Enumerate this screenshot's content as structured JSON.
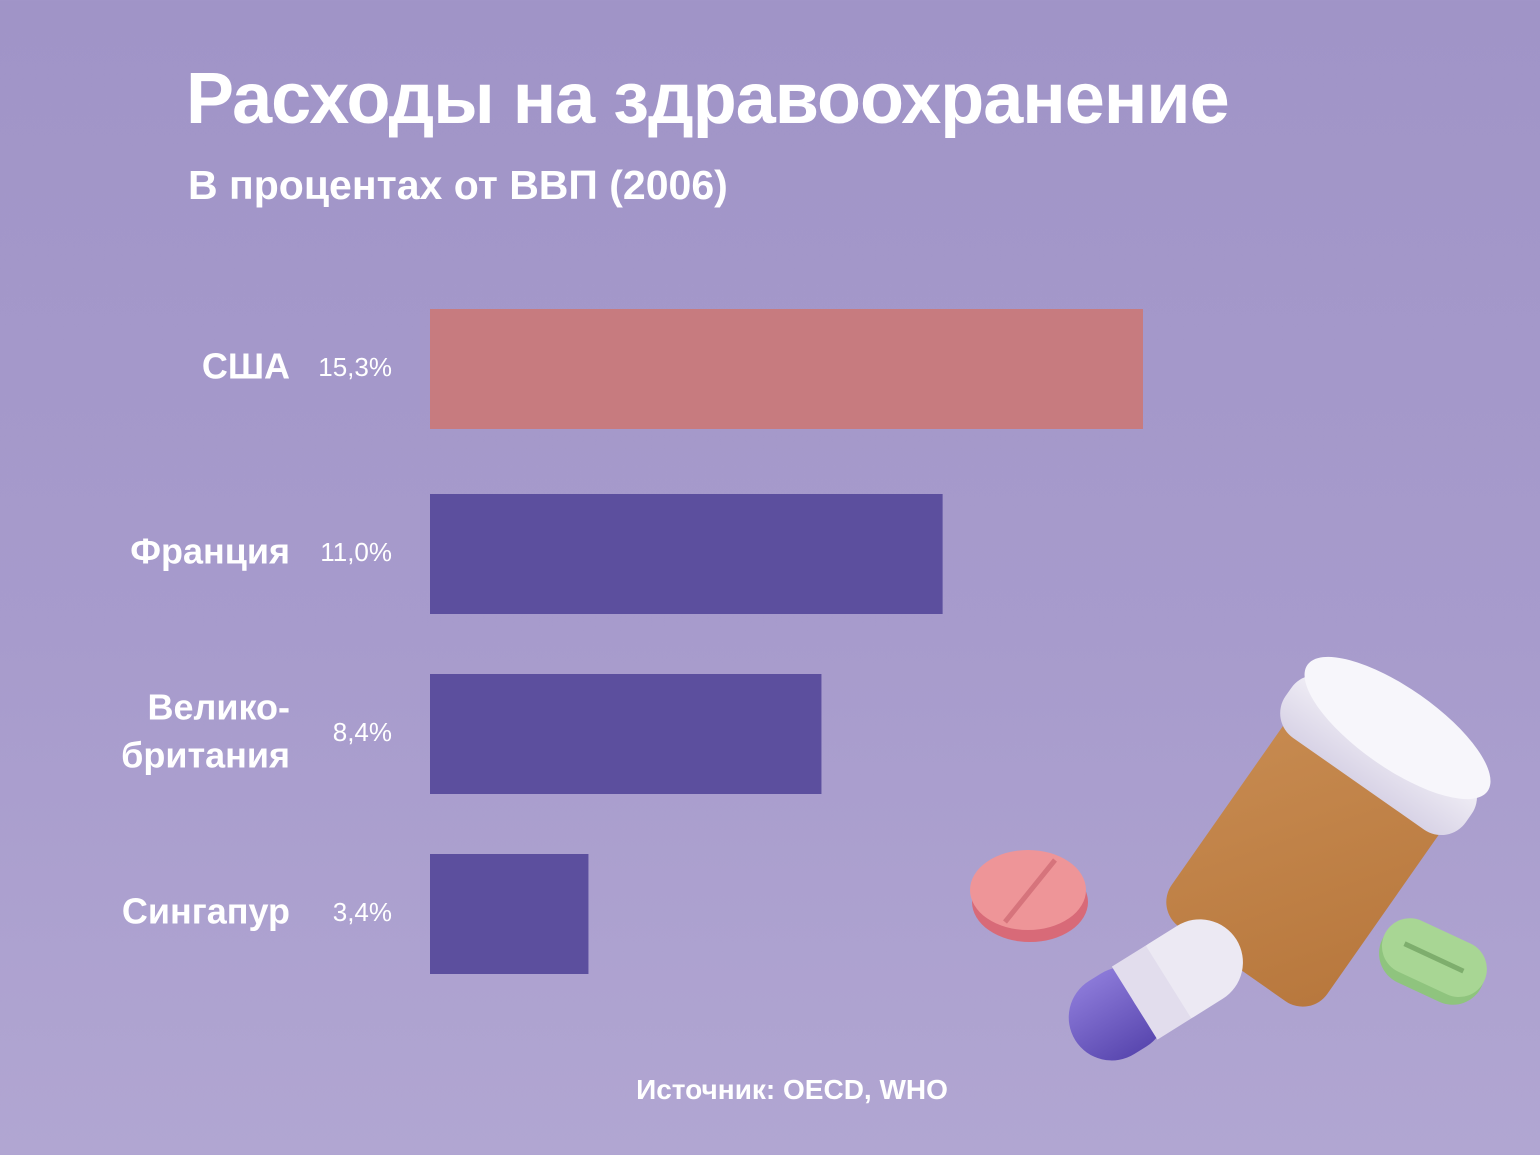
{
  "title": "Расходы на здравоохранение",
  "subtitle": "В процентах от ВВП (2006)",
  "source": "Источник: OECD, WHO",
  "colors": {
    "background": "#a39ac8",
    "highlight_bar": "#c77b7f",
    "bar": "#5c4f9e",
    "text": "#ffffff"
  },
  "illustration": "pill-bottle-and-pills",
  "chart_data": {
    "type": "bar",
    "orientation": "horizontal",
    "categories": [
      [
        "США"
      ],
      [
        "Франция"
      ],
      [
        "Велико-",
        "британия"
      ],
      [
        "Сингапур"
      ]
    ],
    "values": [
      15.3,
      11.0,
      8.4,
      3.4
    ],
    "value_labels": [
      "15,3%",
      "11,0%",
      "8,4%",
      "3,4%"
    ],
    "highlight_index": 0,
    "title": "Расходы на здравоохранение",
    "subtitle": "В процентах от ВВП (2006)",
    "xlim": [
      0,
      15.3
    ],
    "grid": false,
    "legend": "none"
  }
}
